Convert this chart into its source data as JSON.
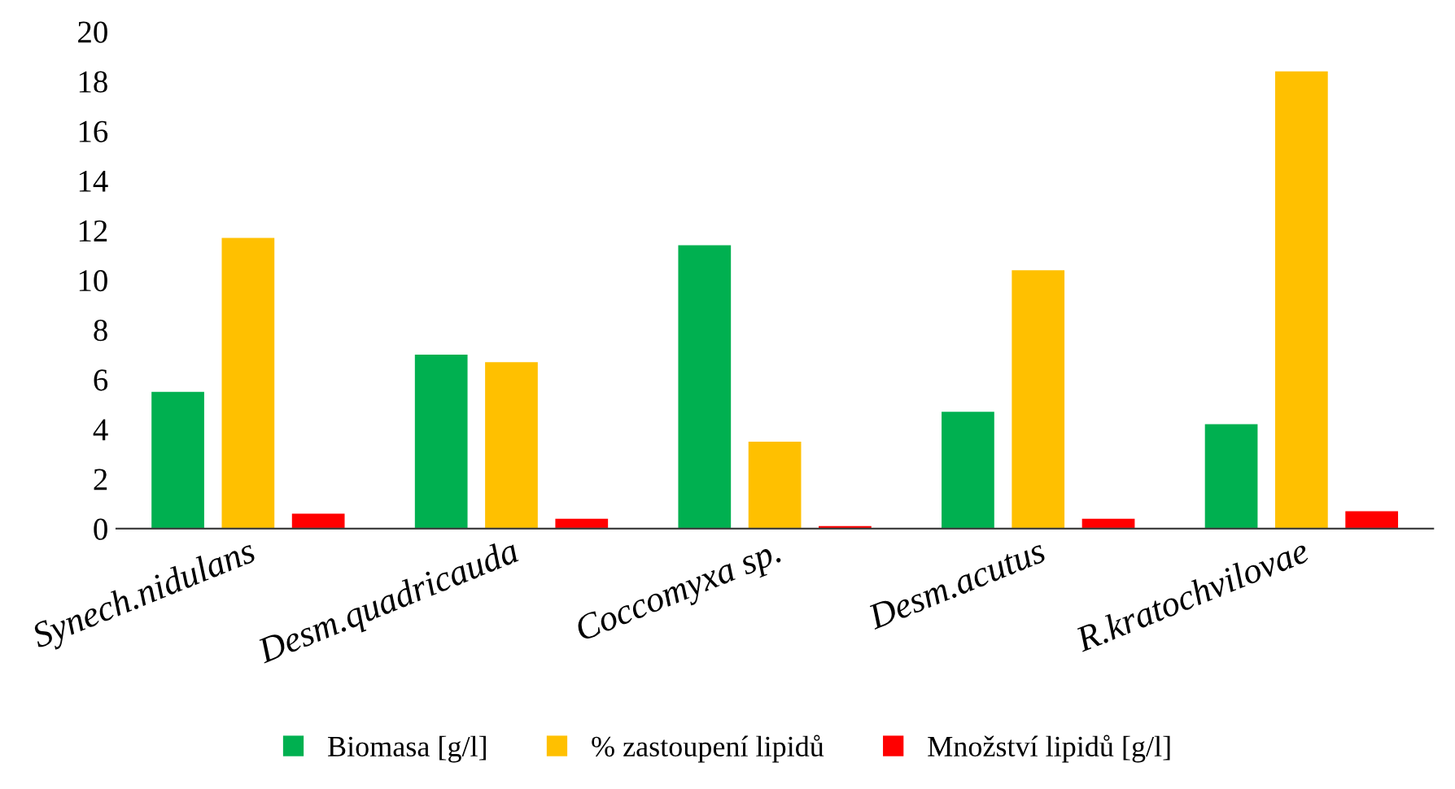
{
  "chart_data": {
    "type": "bar",
    "categories": [
      "Synech.nidulans",
      "Desm.quadricauda",
      "Coccomyxa sp.",
      "Desm.acutus",
      "R.kratochvilovae"
    ],
    "series": [
      {
        "name": "Biomasa [g/l]",
        "color": "#00b050",
        "values": [
          5.5,
          7.0,
          11.4,
          4.7,
          4.2
        ]
      },
      {
        "name": "% zastoupení lipidů",
        "color": "#ffc000",
        "values": [
          11.7,
          6.7,
          3.5,
          10.4,
          18.4
        ]
      },
      {
        "name": "Množství lipidů [g/l]",
        "color": "#ff0000",
        "values": [
          0.6,
          0.4,
          0.1,
          0.4,
          0.7
        ]
      }
    ],
    "ylim": [
      0,
      20
    ],
    "yticks": [
      0,
      2,
      4,
      6,
      8,
      10,
      12,
      14,
      16,
      18,
      20
    ],
    "grid": false,
    "legend": "bottom"
  }
}
